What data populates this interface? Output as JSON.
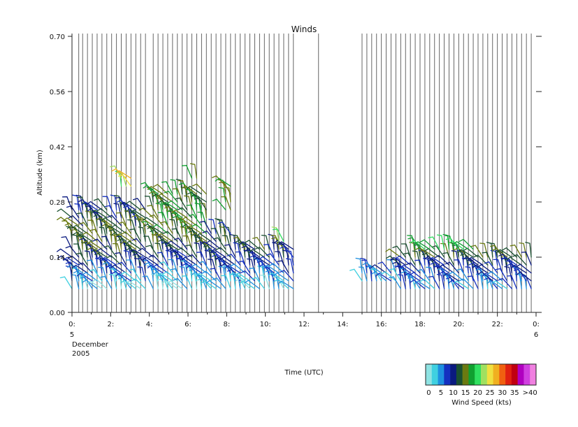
{
  "chart_data": {
    "type": "wind-barb",
    "title": "Winds",
    "xlabel": "Time (UTC)",
    "ylabel": "Altitude (km)",
    "ylim": [
      0,
      0.7
    ],
    "xlim": [
      0,
      24
    ],
    "y_ticks": [
      "0.00",
      "0.14",
      "0.28",
      "0.42",
      "0.56",
      "0.70"
    ],
    "x_ticks": [
      {
        "hour": 0,
        "label": "0:"
      },
      {
        "hour": 2,
        "label": "2:"
      },
      {
        "hour": 4,
        "label": "4:"
      },
      {
        "hour": 6,
        "label": "6:"
      },
      {
        "hour": 8,
        "label": "8:"
      },
      {
        "hour": 10,
        "label": "10:"
      },
      {
        "hour": 12,
        "label": "12:"
      },
      {
        "hour": 14,
        "label": "14:"
      },
      {
        "hour": 16,
        "label": "16:"
      },
      {
        "hour": 18,
        "label": "18:"
      },
      {
        "hour": 20,
        "label": "20:"
      },
      {
        "hour": 22,
        "label": "22:"
      },
      {
        "hour": 24,
        "label": "0:"
      }
    ],
    "x_sub_start": {
      "day": "5",
      "month": "December",
      "year": "2005"
    },
    "x_sub_end": {
      "day": "6"
    },
    "colorbar": {
      "title": "Wind Speed (kts)",
      "labels": [
        "0",
        "5",
        "10",
        "15",
        "20",
        "25",
        "30",
        "35",
        ">40"
      ],
      "colors": [
        "#8fe3e3",
        "#3fd0e0",
        "#1e90e0",
        "#1430c0",
        "#0a1a80",
        "#1a5030",
        "#6a7a10",
        "#10a030",
        "#30e060",
        "#a0e060",
        "#f0e040",
        "#f0b020",
        "#f06010",
        "#e02010",
        "#c00010",
        "#b000c0",
        "#d040e0",
        "#f080e0"
      ]
    },
    "profile_hours": [
      0.0,
      0.35,
      0.55,
      0.8,
      1.05,
      1.3,
      1.55,
      1.8,
      2.05,
      2.3,
      2.55,
      2.8,
      3.05,
      3.3,
      3.55,
      3.8,
      4.2,
      4.45,
      4.7,
      4.95,
      5.2,
      5.45,
      5.7,
      5.95,
      6.2,
      6.45,
      6.7,
      6.95,
      7.2,
      7.45,
      7.7,
      7.95,
      8.2,
      8.45,
      8.7,
      8.95,
      9.2,
      9.45,
      9.7,
      9.95,
      10.2,
      10.45,
      10.7,
      10.95,
      11.2,
      11.45,
      12.75,
      15.0,
      15.25,
      15.5,
      15.75,
      16.0,
      16.25,
      16.5,
      16.75,
      17.0,
      17.25,
      17.5,
      17.75,
      18.0,
      18.25,
      18.5,
      18.75,
      19.0,
      19.25,
      19.5,
      19.75,
      20.0,
      20.25,
      20.5,
      20.75,
      21.0,
      21.25,
      21.5,
      21.75,
      22.0,
      22.25,
      22.5,
      22.75,
      23.0,
      23.25,
      23.5,
      23.75
    ],
    "layers": [
      {
        "from": 0.0,
        "to": 4.0,
        "alts": [
          0.06,
          0.08,
          0.1,
          0.12,
          0.14,
          0.16,
          0.18,
          0.2,
          0.22,
          0.24,
          0.26
        ],
        "speeds": [
          4,
          6,
          9,
          11,
          13,
          14,
          15,
          15,
          14,
          12,
          11
        ]
      },
      {
        "from": 2.5,
        "to": 3.1,
        "alts": [
          0.32,
          0.34
        ],
        "speeds": [
          24,
          26
        ]
      },
      {
        "from": 4.2,
        "to": 7.0,
        "alts": [
          0.06,
          0.08,
          0.1,
          0.12,
          0.14,
          0.16,
          0.18,
          0.2,
          0.22,
          0.24,
          0.26,
          0.28,
          0.3
        ],
        "speeds": [
          3,
          5,
          7,
          10,
          12,
          13,
          15,
          16,
          17,
          17,
          17,
          16,
          17
        ]
      },
      {
        "from": 6.0,
        "to": 6.5,
        "alts": [
          0.34
        ],
        "speeds": [
          18
        ]
      },
      {
        "from": 7.2,
        "to": 8.2,
        "alts": [
          0.06,
          0.08,
          0.1,
          0.12,
          0.14,
          0.16,
          0.18,
          0.2
        ],
        "speeds": [
          5,
          7,
          9,
          11,
          12,
          13,
          14,
          12
        ]
      },
      {
        "from": 7.9,
        "to": 8.2,
        "alts": [
          0.26,
          0.28,
          0.3,
          0.32
        ],
        "speeds": [
          18,
          19,
          18,
          18
        ]
      },
      {
        "from": 8.45,
        "to": 11.45,
        "alts": [
          0.06,
          0.08,
          0.1,
          0.12,
          0.14,
          0.16
        ],
        "speeds": [
          4,
          6,
          8,
          10,
          12,
          14
        ]
      },
      {
        "from": 10.7,
        "to": 11.0,
        "alts": [
          0.18
        ],
        "speeds": [
          22
        ]
      },
      {
        "from": 15.0,
        "to": 17.0,
        "alts": [
          0.08,
          0.1
        ],
        "speeds": [
          6,
          8
        ]
      },
      {
        "from": 17.0,
        "to": 23.75,
        "alts": [
          0.06,
          0.08,
          0.1,
          0.12,
          0.14
        ],
        "speeds": [
          7,
          8,
          10,
          12,
          15
        ]
      },
      {
        "from": 17.75,
        "to": 20.8,
        "alts": [
          0.16
        ],
        "speeds": [
          20
        ]
      }
    ]
  }
}
